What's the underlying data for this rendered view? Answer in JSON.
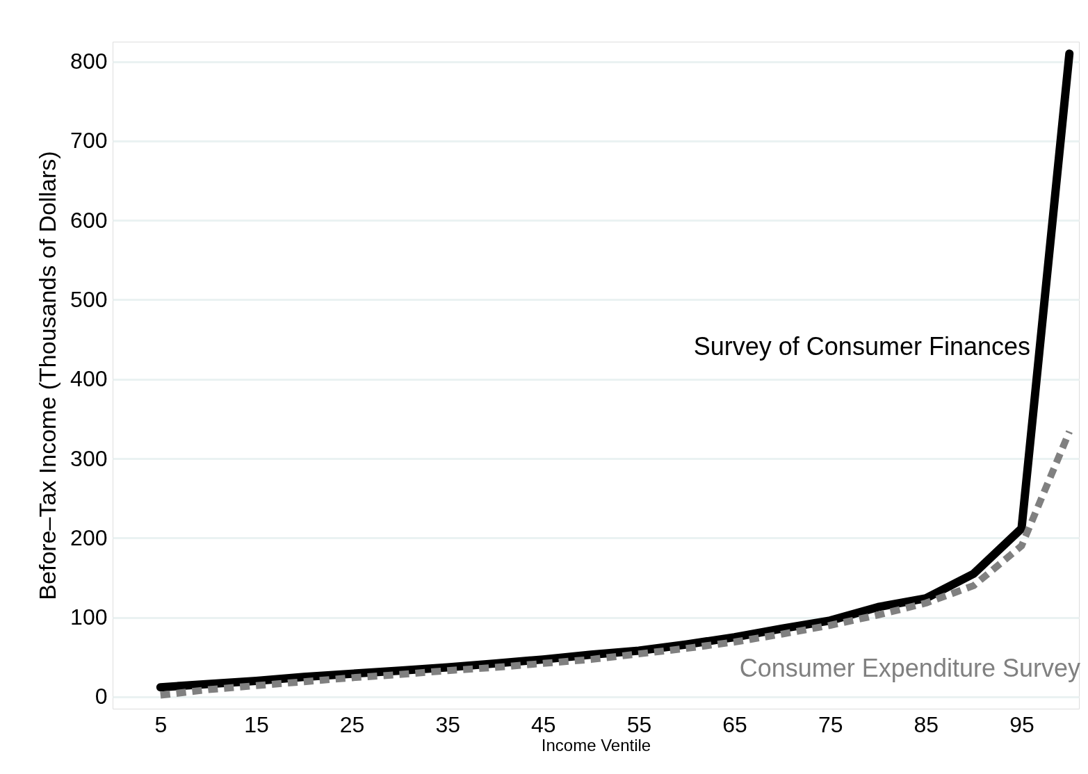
{
  "chart_data": {
    "type": "line",
    "xlabel": "Income Ventile",
    "ylabel": "Before–Tax Income (Thousands of Dollars)",
    "x": [
      5,
      10,
      15,
      20,
      25,
      30,
      35,
      40,
      45,
      50,
      55,
      60,
      65,
      70,
      75,
      80,
      85,
      90,
      95,
      100
    ],
    "series": [
      {
        "name": "Survey of Consumer Finances",
        "color": "#000000",
        "line_style": "solid",
        "values": [
          12,
          16,
          20,
          25,
          29,
          33,
          37,
          42,
          47,
          53,
          58,
          66,
          75,
          86,
          96,
          113,
          124,
          155,
          212,
          810
        ]
      },
      {
        "name": "Consumer Expenditure Survey",
        "color": "#808080",
        "line_style": "dashed",
        "values": [
          2,
          9,
          14,
          19,
          24,
          28,
          33,
          37,
          42,
          47,
          54,
          61,
          69,
          79,
          90,
          103,
          118,
          140,
          190,
          334
        ]
      }
    ],
    "xlim": [
      0,
      101
    ],
    "ylim": [
      -15,
      825
    ],
    "xticks": [
      5,
      15,
      25,
      35,
      45,
      55,
      65,
      75,
      85,
      95
    ],
    "yticks": [
      0,
      100,
      200,
      300,
      400,
      500,
      600,
      700,
      800
    ],
    "grid": "y",
    "marker": "none"
  }
}
